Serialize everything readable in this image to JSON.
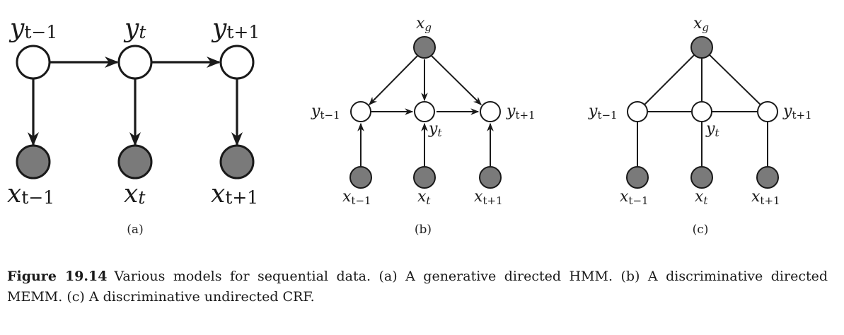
{
  "figure": {
    "panels": [
      {
        "panel_label": "(a)",
        "y_nodes": [
          {
            "main": "y",
            "sub": "t−1"
          },
          {
            "main": "y",
            "sub": "t"
          },
          {
            "main": "y",
            "sub": "t+1"
          }
        ],
        "x_nodes": [
          {
            "main": "x",
            "sub": "t−1"
          },
          {
            "main": "x",
            "sub": "t"
          },
          {
            "main": "x",
            "sub": "t+1"
          }
        ]
      },
      {
        "panel_label": "(b)",
        "global_node": {
          "main": "x",
          "sub": "g"
        },
        "y_nodes": [
          {
            "main": "y",
            "sub": "t−1"
          },
          {
            "main": "y",
            "sub": "t"
          },
          {
            "main": "y",
            "sub": "t+1"
          }
        ],
        "x_nodes": [
          {
            "main": "x",
            "sub": "t−1"
          },
          {
            "main": "x",
            "sub": "t"
          },
          {
            "main": "x",
            "sub": "t+1"
          }
        ]
      },
      {
        "panel_label": "(c)",
        "global_node": {
          "main": "x",
          "sub": "g"
        },
        "y_nodes": [
          {
            "main": "y",
            "sub": "t−1"
          },
          {
            "main": "y",
            "sub": "t"
          },
          {
            "main": "y",
            "sub": "t+1"
          }
        ],
        "x_nodes": [
          {
            "main": "x",
            "sub": "t−1"
          },
          {
            "main": "x",
            "sub": "t"
          },
          {
            "main": "x",
            "sub": "t+1"
          }
        ]
      }
    ],
    "colors": {
      "observed_fill": "#7a7a7a",
      "hidden_fill": "#ffffff",
      "stroke": "#1a1a1a"
    }
  },
  "caption": {
    "number": "Figure 19.14",
    "text": "Various models for sequential data.  (a) A generative directed HMM. (b) A discriminative directed MEMM. (c) A discriminative undirected CRF."
  }
}
